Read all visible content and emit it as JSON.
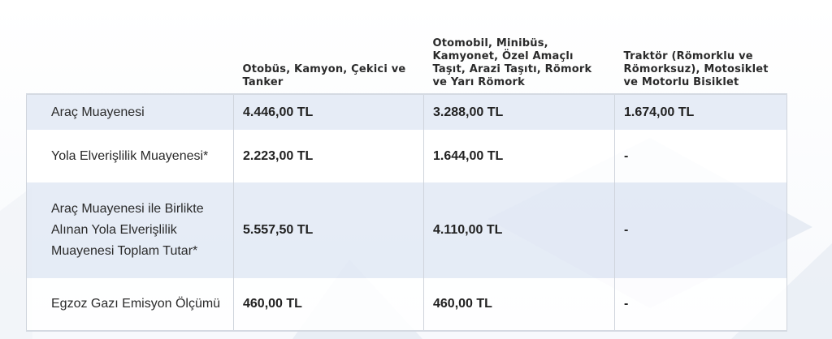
{
  "table": {
    "headers": [
      "",
      "Otobüs, Kamyon, Çekici ve Tanker",
      "Otomobil, Minibüs, Kamyonet, Özel Amaçlı Taşıt, Arazi Taşıtı, Römork ve Yarı Römork",
      "Traktör (Römorklu ve Römorksuz), Motosiklet ve Motorlu Bisiklet"
    ],
    "rows": [
      {
        "label": "Araç Muayenesi",
        "values": [
          "4.446,00 TL",
          "3.288,00 TL",
          "1.674,00 TL"
        ]
      },
      {
        "label": "Yola Elverişlilik Muayenesi*",
        "values": [
          "2.223,00 TL",
          "1.644,00 TL",
          "-"
        ]
      },
      {
        "label": "Araç Muayenesi ile Birlikte Alınan Yola Elverişlilik Muayenesi Toplam Tutar*",
        "values": [
          "5.557,50 TL",
          "4.110,00 TL",
          "-"
        ]
      },
      {
        "label": "Egzoz Gazı Emisyon Ölçümü",
        "values": [
          "460,00 TL",
          "460,00 TL",
          "-"
        ]
      }
    ]
  },
  "colors": {
    "row_shade": "#e2e9f4",
    "border": "#cfd4dc",
    "background_shapes": "#dfe6f0"
  }
}
